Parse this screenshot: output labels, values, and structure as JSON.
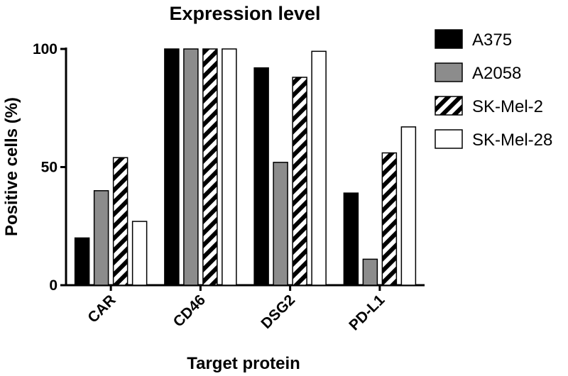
{
  "chart_data": {
    "type": "bar",
    "title": "Expression level",
    "xlabel": "Target protein",
    "ylabel": "Positive cells (%)",
    "categories": [
      "CAR",
      "CD46",
      "DSG2",
      "PD-L1"
    ],
    "yticks": [
      "0",
      "50",
      "100"
    ],
    "ylim": [
      0,
      100
    ],
    "grid": false,
    "legend_position": "right",
    "series": [
      {
        "name": "A375",
        "values": [
          20,
          100,
          92,
          39
        ],
        "fill": "solid-black",
        "color": "#000000"
      },
      {
        "name": "A2058",
        "values": [
          40,
          100,
          52,
          11
        ],
        "fill": "solid-gray",
        "color": "#8c8c8c"
      },
      {
        "name": "SK-Mel-2",
        "values": [
          54,
          100,
          88,
          56
        ],
        "fill": "diagonal-stripes",
        "color": "#000000"
      },
      {
        "name": "SK-Mel-28",
        "values": [
          27,
          100,
          99,
          67
        ],
        "fill": "solid-white",
        "color": "#ffffff"
      }
    ]
  }
}
